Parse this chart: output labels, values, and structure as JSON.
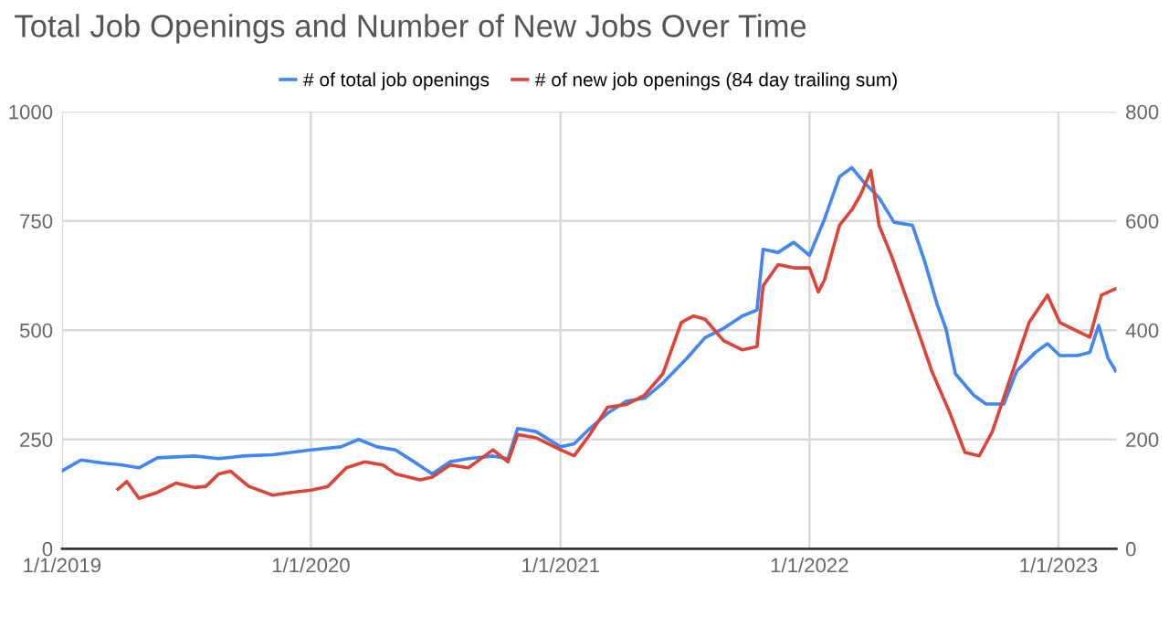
{
  "chart_data": {
    "type": "line",
    "title": "Total Job Openings and Number of New Jobs Over Time",
    "legend": "top",
    "grid": true,
    "line_style": "solid",
    "marker": "none",
    "xlim": [
      "2019-01-01",
      "2023-03-27"
    ],
    "xticks": [
      {
        "value": "2019-01-01",
        "label": "1/1/2019"
      },
      {
        "value": "2020-01-01",
        "label": "1/1/2020"
      },
      {
        "value": "2021-01-01",
        "label": "1/1/2021"
      },
      {
        "value": "2022-01-01",
        "label": "1/1/2022"
      },
      {
        "value": "2023-01-01",
        "label": "1/1/2023"
      }
    ],
    "ylim": [
      0,
      1000
    ],
    "yticks": [
      0,
      250,
      500,
      750,
      1000
    ],
    "y2lim": [
      0,
      800
    ],
    "y2ticks": [
      0,
      200,
      400,
      600,
      800
    ],
    "series": [
      {
        "name": "# of total job openings",
        "color": "#4285f4",
        "x": [
          "2019-01-01",
          "2019-01-29",
          "2019-03-01",
          "2019-03-28",
          "2019-04-24",
          "2019-05-21",
          "2019-07-14",
          "2019-08-19",
          "2019-09-23",
          "2019-11-06",
          "2020-01-01",
          "2020-02-14",
          "2020-03-11",
          "2020-04-07",
          "2020-05-04",
          "2020-05-31",
          "2020-06-27",
          "2020-07-23",
          "2020-08-19",
          "2020-09-24",
          "2020-10-16",
          "2020-10-30",
          "2020-11-26",
          "2021-01-01",
          "2021-01-21",
          "2021-02-13",
          "2021-03-11",
          "2021-04-08",
          "2021-05-04",
          "2021-05-31",
          "2021-07-05",
          "2021-08-01",
          "2021-08-28",
          "2021-09-24",
          "2021-10-16",
          "2021-10-25",
          "2021-11-16",
          "2021-12-09",
          "2022-01-01",
          "2022-01-23",
          "2022-02-14",
          "2022-03-04",
          "2022-03-22",
          "2022-04-13",
          "2022-05-05",
          "2022-06-01",
          "2022-06-19",
          "2022-07-07",
          "2022-07-20",
          "2022-08-03",
          "2022-08-30",
          "2022-09-17",
          "2022-10-13",
          "2022-11-01",
          "2022-11-28",
          "2022-12-16",
          "2023-01-03",
          "2023-01-29",
          "2023-02-16",
          "2023-03-01",
          "2023-03-15",
          "2023-03-26"
        ],
        "values": [
          178,
          203,
          196,
          192,
          185,
          208,
          212,
          206,
          212,
          215,
          226,
          233,
          250,
          233,
          226,
          199,
          171,
          199,
          206,
          212,
          206,
          275,
          268,
          233,
          240,
          275,
          310,
          338,
          344,
          379,
          435,
          483,
          504,
          532,
          546,
          685,
          678,
          701,
          671,
          754,
          851,
          872,
          838,
          803,
          747,
          740,
          657,
          560,
          504,
          400,
          351,
          331,
          331,
          407,
          449,
          469,
          442,
          442,
          449,
          511,
          435,
          407
        ]
      },
      {
        "name": "# of new job openings (84 day trailing sum)",
        "color": "#db4437",
        "axis": "y2",
        "x": [
          "2019-03-24",
          "2019-04-06",
          "2019-04-24",
          "2019-05-21",
          "2019-06-17",
          "2019-07-14",
          "2019-07-31",
          "2019-08-19",
          "2019-09-05",
          "2019-10-02",
          "2019-11-06",
          "2019-12-03",
          "2020-01-01",
          "2020-01-26",
          "2020-02-22",
          "2020-03-20",
          "2020-04-16",
          "2020-05-04",
          "2020-06-09",
          "2020-06-27",
          "2020-07-23",
          "2020-08-19",
          "2020-09-24",
          "2020-10-16",
          "2020-10-30",
          "2020-11-26",
          "2021-01-01",
          "2021-01-21",
          "2021-02-13",
          "2021-03-11",
          "2021-04-08",
          "2021-05-04",
          "2021-05-31",
          "2021-06-27",
          "2021-07-15",
          "2021-08-01",
          "2021-08-28",
          "2021-09-24",
          "2021-10-16",
          "2021-10-25",
          "2021-11-16",
          "2021-12-09",
          "2022-01-01",
          "2022-01-14",
          "2022-01-23",
          "2022-02-14",
          "2022-03-04",
          "2022-03-17",
          "2022-04-01",
          "2022-04-13",
          "2022-05-01",
          "2022-05-23",
          "2022-06-11",
          "2022-06-29",
          "2022-07-26",
          "2022-08-17",
          "2022-09-07",
          "2022-09-26",
          "2022-10-23",
          "2022-11-19",
          "2022-12-16",
          "2023-01-03",
          "2023-01-29",
          "2023-02-16",
          "2023-03-05",
          "2023-03-26"
        ],
        "values": [
          109,
          123,
          92,
          103,
          120,
          112,
          114,
          137,
          142,
          114,
          98,
          103,
          107,
          114,
          148,
          159,
          153,
          137,
          126,
          131,
          153,
          148,
          181,
          159,
          209,
          203,
          181,
          170,
          209,
          259,
          264,
          281,
          320,
          414,
          426,
          420,
          381,
          364,
          370,
          481,
          520,
          514,
          514,
          470,
          492,
          592,
          620,
          648,
          692,
          592,
          537,
          459,
          392,
          326,
          248,
          176,
          170,
          214,
          314,
          414,
          464,
          414,
          398,
          387,
          464,
          476
        ]
      }
    ]
  }
}
